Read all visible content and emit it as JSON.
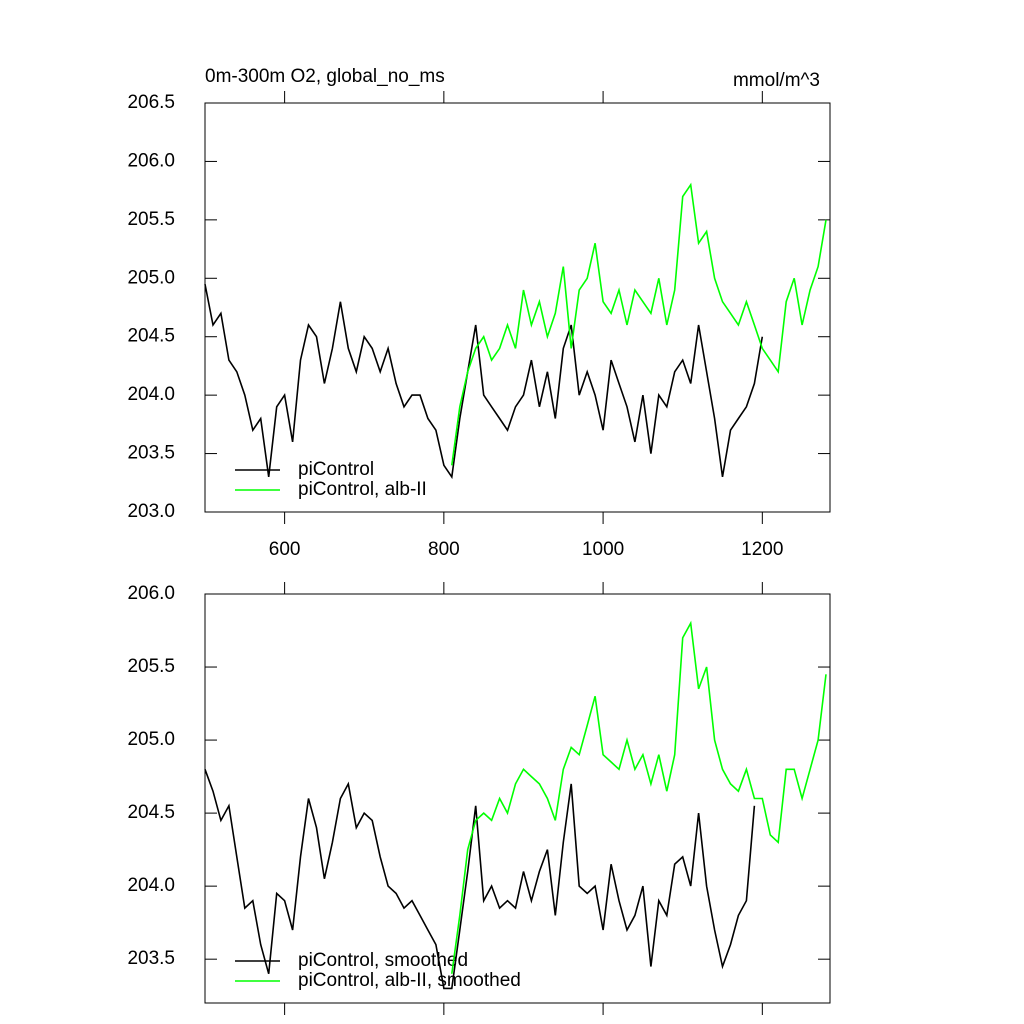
{
  "chart_data": [
    {
      "type": "line",
      "title": "0m-300m O2, global_no_ms",
      "units": "mmol/m^3",
      "xlim": [
        500,
        1285
      ],
      "xticks": [
        600,
        800,
        1000,
        1200
      ],
      "show_xtick_labels": true,
      "ylim": [
        203,
        206.5
      ],
      "yticks": [
        {
          "value": 203,
          "label": "203.0"
        },
        203.5,
        {
          "value": 204,
          "label": "204.0"
        },
        204.5,
        {
          "value": 205,
          "label": "205.0"
        },
        205.5,
        {
          "value": 206,
          "label": "206.0"
        },
        206.5
      ],
      "legend": "lower left",
      "series": [
        {
          "name": "piControl",
          "color": "#000000",
          "x": [
            500,
            510,
            520,
            530,
            540,
            550,
            560,
            570,
            580,
            590,
            600,
            610,
            620,
            630,
            640,
            650,
            660,
            670,
            680,
            690,
            700,
            710,
            720,
            730,
            740,
            750,
            760,
            770,
            780,
            790,
            800,
            810,
            820,
            830,
            840,
            850,
            860,
            870,
            880,
            890,
            900,
            910,
            920,
            930,
            940,
            950,
            960,
            970,
            980,
            990,
            1000,
            1010,
            1020,
            1030,
            1040,
            1050,
            1060,
            1070,
            1080,
            1090,
            1100,
            1110,
            1120,
            1130,
            1140,
            1150,
            1160,
            1170,
            1180,
            1190,
            1200
          ],
          "values": [
            204.95,
            204.6,
            204.7,
            204.3,
            204.2,
            204.0,
            203.7,
            203.8,
            203.3,
            203.9,
            204.0,
            203.6,
            204.3,
            204.6,
            204.5,
            204.1,
            204.4,
            204.8,
            204.4,
            204.2,
            204.5,
            204.4,
            204.2,
            204.4,
            204.1,
            203.9,
            204.0,
            204.0,
            203.8,
            203.7,
            203.4,
            203.3,
            203.8,
            204.2,
            204.6,
            204.0,
            203.9,
            203.8,
            203.7,
            203.9,
            204.0,
            204.3,
            203.9,
            204.2,
            203.8,
            204.4,
            204.6,
            204.0,
            204.2,
            204.0,
            203.7,
            204.3,
            204.1,
            203.9,
            203.6,
            204.0,
            203.5,
            204.0,
            203.9,
            204.2,
            204.3,
            204.1,
            204.6,
            204.2,
            203.8,
            203.3,
            203.7,
            203.8,
            203.9,
            204.1,
            204.5
          ]
        },
        {
          "name": "piControl, alb-II",
          "color": "#00ff00",
          "x": [
            810,
            820,
            830,
            840,
            850,
            860,
            870,
            880,
            890,
            900,
            910,
            920,
            930,
            940,
            950,
            960,
            970,
            980,
            990,
            1000,
            1010,
            1020,
            1030,
            1040,
            1050,
            1060,
            1070,
            1080,
            1090,
            1100,
            1110,
            1120,
            1130,
            1140,
            1150,
            1160,
            1170,
            1180,
            1190,
            1200,
            1210,
            1220,
            1230,
            1240,
            1250,
            1260,
            1270,
            1280
          ],
          "values": [
            203.4,
            203.9,
            204.2,
            204.4,
            204.5,
            204.3,
            204.4,
            204.6,
            204.4,
            204.9,
            204.6,
            204.8,
            204.5,
            204.7,
            205.1,
            204.4,
            204.9,
            205.0,
            205.3,
            204.8,
            204.7,
            204.9,
            204.6,
            204.9,
            204.8,
            204.7,
            205.0,
            204.6,
            204.9,
            205.7,
            205.8,
            205.3,
            205.4,
            205.0,
            204.8,
            204.7,
            204.6,
            204.8,
            204.6,
            204.4,
            204.3,
            204.2,
            204.8,
            205.0,
            204.6,
            204.9,
            205.1,
            205.5
          ]
        }
      ]
    },
    {
      "type": "line",
      "xlim": [
        500,
        1285
      ],
      "xticks": [
        600,
        800,
        1000,
        1200
      ],
      "show_xtick_labels": false,
      "ylim": [
        203.2,
        206
      ],
      "yticks": [
        203.5,
        {
          "value": 204,
          "label": "204.0"
        },
        204.5,
        {
          "value": 205,
          "label": "205.0"
        },
        205.5,
        {
          "value": 206,
          "label": "206.0"
        }
      ],
      "legend": "lower left",
      "series": [
        {
          "name": "piControl, smoothed",
          "color": "#000000",
          "x": [
            500,
            510,
            520,
            530,
            540,
            550,
            560,
            570,
            580,
            590,
            600,
            610,
            620,
            630,
            640,
            650,
            660,
            670,
            680,
            690,
            700,
            710,
            720,
            730,
            740,
            750,
            760,
            770,
            780,
            790,
            800,
            810,
            820,
            830,
            840,
            850,
            860,
            870,
            880,
            890,
            900,
            910,
            920,
            930,
            940,
            950,
            960,
            970,
            980,
            990,
            1000,
            1010,
            1020,
            1030,
            1040,
            1050,
            1060,
            1070,
            1080,
            1090,
            1100,
            1110,
            1120,
            1130,
            1140,
            1150,
            1160,
            1170,
            1180,
            1190
          ],
          "values": [
            204.8,
            204.65,
            204.45,
            204.55,
            204.2,
            203.85,
            203.9,
            203.6,
            203.4,
            203.95,
            203.9,
            203.7,
            204.2,
            204.6,
            204.4,
            204.05,
            204.3,
            204.6,
            204.7,
            204.4,
            204.5,
            204.45,
            204.2,
            204.0,
            203.95,
            203.85,
            203.9,
            203.8,
            203.7,
            203.6,
            203.3,
            203.3,
            203.7,
            204.1,
            204.55,
            203.9,
            204.0,
            203.85,
            203.9,
            203.85,
            204.1,
            203.9,
            204.1,
            204.25,
            203.8,
            204.3,
            204.7,
            204.0,
            203.95,
            204.0,
            203.7,
            204.15,
            203.9,
            203.7,
            203.8,
            204.0,
            203.45,
            203.9,
            203.8,
            204.15,
            204.2,
            204.0,
            204.5,
            204.0,
            203.7,
            203.45,
            203.6,
            203.8,
            203.9,
            204.55
          ]
        },
        {
          "name": "piControl, alb-II, smoothed",
          "color": "#00ff00",
          "x": [
            810,
            820,
            830,
            840,
            850,
            860,
            870,
            880,
            890,
            900,
            910,
            920,
            930,
            940,
            950,
            960,
            970,
            980,
            990,
            1000,
            1010,
            1020,
            1030,
            1040,
            1050,
            1060,
            1070,
            1080,
            1090,
            1100,
            1110,
            1120,
            1130,
            1140,
            1150,
            1160,
            1170,
            1180,
            1190,
            1200,
            1210,
            1220,
            1230,
            1240,
            1250,
            1260,
            1270,
            1280
          ],
          "values": [
            203.4,
            203.8,
            204.25,
            204.45,
            204.5,
            204.45,
            204.6,
            204.5,
            204.7,
            204.8,
            204.75,
            204.7,
            204.6,
            204.45,
            204.8,
            204.95,
            204.9,
            205.1,
            205.3,
            204.9,
            204.85,
            204.8,
            205.0,
            204.8,
            204.9,
            204.7,
            204.9,
            204.65,
            204.9,
            205.7,
            205.8,
            205.35,
            205.5,
            205.0,
            204.8,
            204.7,
            204.65,
            204.8,
            204.6,
            204.6,
            204.35,
            204.3,
            204.8,
            204.8,
            204.6,
            204.8,
            205.0,
            205.45
          ]
        }
      ]
    }
  ]
}
